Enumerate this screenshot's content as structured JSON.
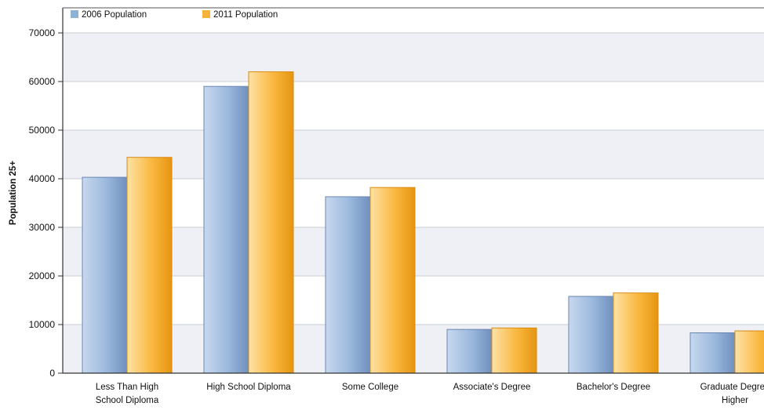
{
  "chart_data": {
    "type": "bar",
    "title": "",
    "xlabel": "",
    "ylabel": "Population 25+",
    "ylim": [
      0,
      70000
    ],
    "yticks": [
      "0",
      "10000",
      "20000",
      "30000",
      "40000",
      "50000",
      "60000",
      "70000"
    ],
    "categories": [
      [
        "Less Than High",
        "School Diploma"
      ],
      [
        "High School Diploma"
      ],
      [
        "Some College"
      ],
      [
        "Associate's Degree"
      ],
      [
        "Bachelor's Degree"
      ],
      [
        "Graduate Degree",
        "Higher"
      ]
    ],
    "series": [
      {
        "name": "2006 Population",
        "values": [
          40300,
          59000,
          36300,
          9000,
          15800,
          8300
        ],
        "color": "#8fb1d8"
      },
      {
        "name": "2011 Population",
        "values": [
          44400,
          62000,
          38200,
          9300,
          16500,
          8700
        ],
        "color": "#f7b23a"
      }
    ],
    "legend": "top-left",
    "grid": true,
    "plot_background": [
      "#ffffff",
      "#eef0f6"
    ]
  }
}
